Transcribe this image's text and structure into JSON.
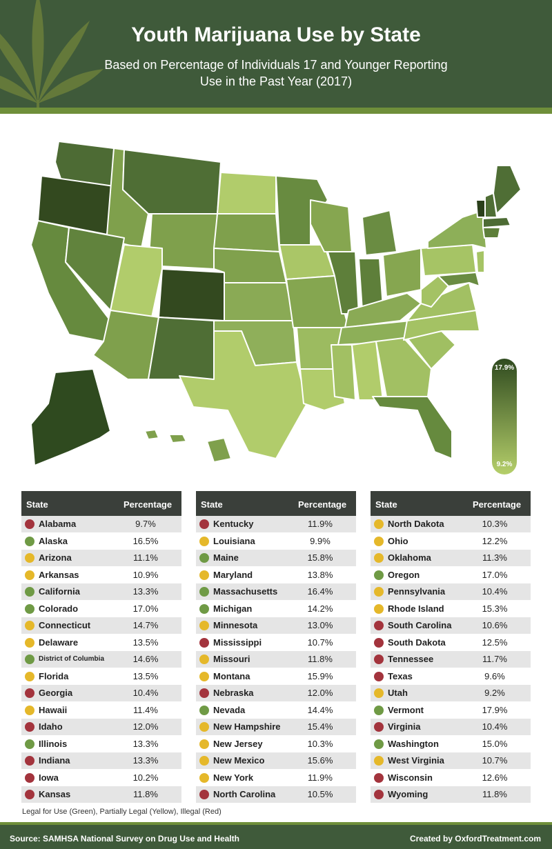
{
  "title": "Youth Marijuana Use by State",
  "subtitle": "Based on Percentage of Individuals 17 and Younger Reporting Use in the Past Year (2017)",
  "legend": {
    "max_label": "17.9%",
    "min_label": "9.2%",
    "max_color": "#2f4a1f",
    "min_color": "#b5cf6a"
  },
  "status_colors": {
    "green": "#6f9a45",
    "yellow": "#e5b82a",
    "red": "#a3343d"
  },
  "table_headers": {
    "state": "State",
    "percentage": "Percentage"
  },
  "chart_data": {
    "type": "table",
    "scale": {
      "min": 9.2,
      "max": 17.9
    },
    "columns": [
      [
        {
          "state": "Alabama",
          "pct": "9.7%",
          "status": "red"
        },
        {
          "state": "Alaska",
          "pct": "16.5%",
          "status": "green"
        },
        {
          "state": "Arizona",
          "pct": "11.1%",
          "status": "yellow"
        },
        {
          "state": "Arkansas",
          "pct": "10.9%",
          "status": "yellow"
        },
        {
          "state": "California",
          "pct": "13.3%",
          "status": "green"
        },
        {
          "state": "Colorado",
          "pct": "17.0%",
          "status": "green"
        },
        {
          "state": "Connecticut",
          "pct": "14.7%",
          "status": "yellow"
        },
        {
          "state": "Delaware",
          "pct": "13.5%",
          "status": "yellow"
        },
        {
          "state": "District of Columbia",
          "pct": "14.6%",
          "status": "green"
        },
        {
          "state": "Florida",
          "pct": "13.5%",
          "status": "yellow"
        },
        {
          "state": "Georgia",
          "pct": "10.4%",
          "status": "red"
        },
        {
          "state": "Hawaii",
          "pct": "11.4%",
          "status": "yellow"
        },
        {
          "state": "Idaho",
          "pct": "12.0%",
          "status": "red"
        },
        {
          "state": "Illinois",
          "pct": "13.3%",
          "status": "green"
        },
        {
          "state": "Indiana",
          "pct": "13.3%",
          "status": "red"
        },
        {
          "state": "Iowa",
          "pct": "10.2%",
          "status": "red"
        },
        {
          "state": "Kansas",
          "pct": "11.8%",
          "status": "red"
        }
      ],
      [
        {
          "state": "Kentucky",
          "pct": "11.9%",
          "status": "red"
        },
        {
          "state": "Louisiana",
          "pct": "9.9%",
          "status": "yellow"
        },
        {
          "state": "Maine",
          "pct": "15.8%",
          "status": "green"
        },
        {
          "state": "Maryland",
          "pct": "13.8%",
          "status": "yellow"
        },
        {
          "state": "Massachusetts",
          "pct": "16.4%",
          "status": "green"
        },
        {
          "state": "Michigan",
          "pct": "14.2%",
          "status": "green"
        },
        {
          "state": "Minnesota",
          "pct": "13.0%",
          "status": "yellow"
        },
        {
          "state": "Mississippi",
          "pct": "10.7%",
          "status": "red"
        },
        {
          "state": "Missouri",
          "pct": "11.8%",
          "status": "yellow"
        },
        {
          "state": "Montana",
          "pct": "15.9%",
          "status": "yellow"
        },
        {
          "state": "Nebraska",
          "pct": "12.0%",
          "status": "red"
        },
        {
          "state": "Nevada",
          "pct": "14.4%",
          "status": "green"
        },
        {
          "state": "New Hampshire",
          "pct": "15.4%",
          "status": "yellow"
        },
        {
          "state": "New Jersey",
          "pct": "10.3%",
          "status": "yellow"
        },
        {
          "state": "New Mexico",
          "pct": "15.6%",
          "status": "yellow"
        },
        {
          "state": "New York",
          "pct": "11.9%",
          "status": "yellow"
        },
        {
          "state": "North Carolina",
          "pct": "10.5%",
          "status": "red"
        }
      ],
      [
        {
          "state": "North Dakota",
          "pct": "10.3%",
          "status": "yellow"
        },
        {
          "state": "Ohio",
          "pct": "12.2%",
          "status": "yellow"
        },
        {
          "state": "Oklahoma",
          "pct": "11.3%",
          "status": "yellow"
        },
        {
          "state": "Oregon",
          "pct": "17.0%",
          "status": "green"
        },
        {
          "state": "Pennsylvania",
          "pct": "10.4%",
          "status": "yellow"
        },
        {
          "state": "Rhode Island",
          "pct": "15.3%",
          "status": "yellow"
        },
        {
          "state": "South Carolina",
          "pct": "10.6%",
          "status": "red"
        },
        {
          "state": "South Dakota",
          "pct": "12.5%",
          "status": "red"
        },
        {
          "state": "Tennessee",
          "pct": "11.7%",
          "status": "red"
        },
        {
          "state": "Texas",
          "pct": "9.6%",
          "status": "red"
        },
        {
          "state": "Utah",
          "pct": "9.2%",
          "status": "yellow"
        },
        {
          "state": "Vermont",
          "pct": "17.9%",
          "status": "green"
        },
        {
          "state": "Virginia",
          "pct": "10.4%",
          "status": "red"
        },
        {
          "state": "Washington",
          "pct": "15.0%",
          "status": "green"
        },
        {
          "state": "West Virginia",
          "pct": "10.7%",
          "status": "yellow"
        },
        {
          "state": "Wisconsin",
          "pct": "12.6%",
          "status": "red"
        },
        {
          "state": "Wyoming",
          "pct": "11.8%",
          "status": "red"
        }
      ]
    ]
  },
  "note": "Legal for Use (Green), Partially Legal (Yellow), Illegal (Red)",
  "footer": {
    "source": "Source: SAMHSA National Survey on Drug Use and Health",
    "credit": "Created by OxfordTreatment.com"
  }
}
